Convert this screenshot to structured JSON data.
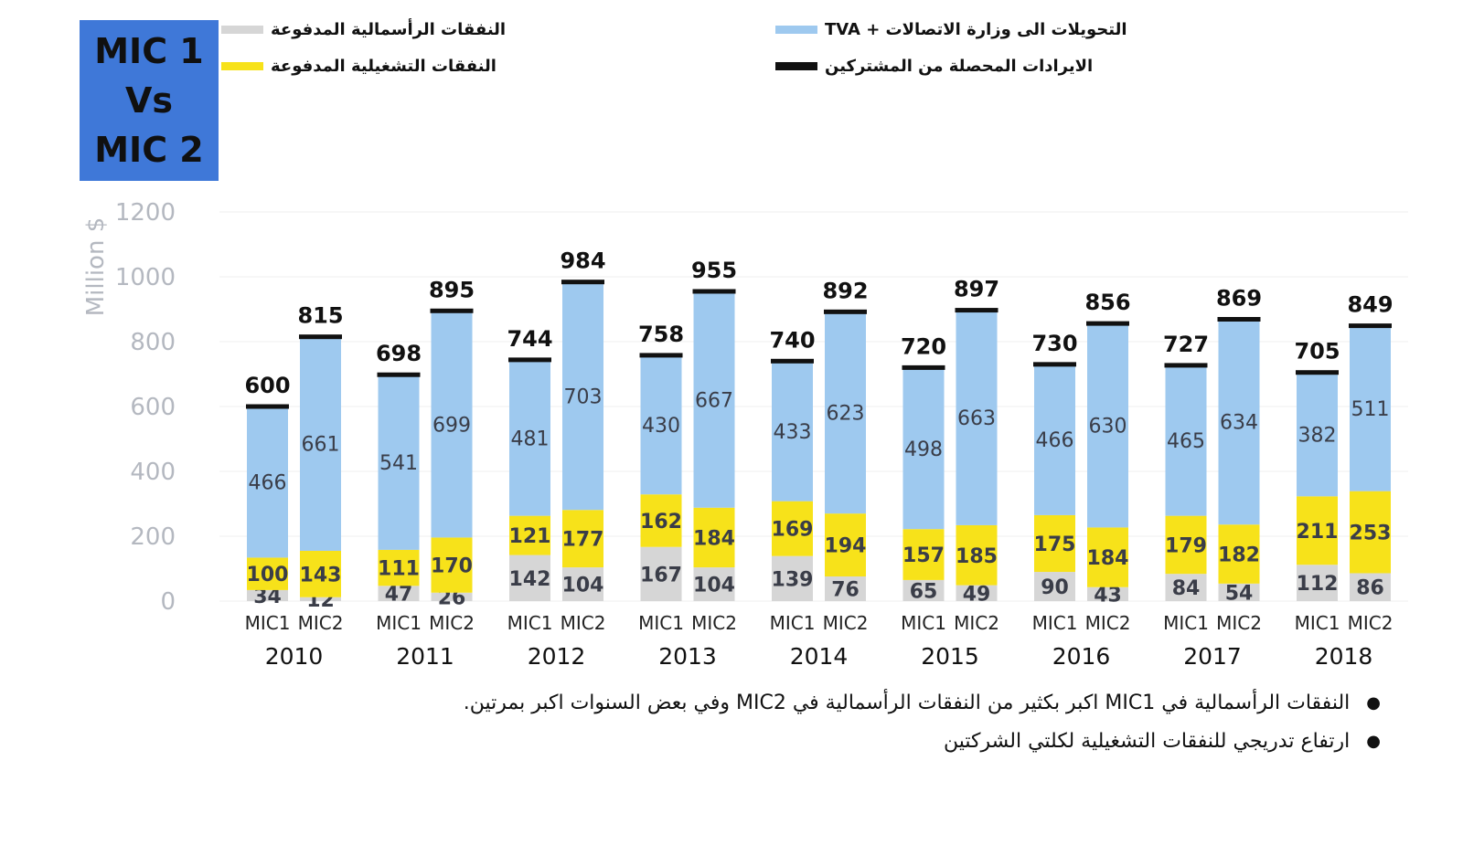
{
  "title_box": {
    "line1": "MIC 1",
    "line2": "Vs",
    "line3": "MIC 2"
  },
  "legend": [
    {
      "label": "النفقات الرأسمالية المدفوعة",
      "color": "#d6d6d6"
    },
    {
      "label": "النفقات التشغيلية المدفوعة",
      "color": "#f7e21a"
    },
    {
      "label": "التحويلات الى وزارة الاتصالات + TVA",
      "color": "#9ec9ef"
    },
    {
      "label": "الايرادات المحصلة من المشتركين",
      "color": "#111111"
    }
  ],
  "bullets": [
    "النفقات الرأسمالية في MIC1 اكبر بكثير من النفقات الرأسمالية في MIC2 وفي بعض السنوات اكبر بمرتين.",
    "ارتفاع تدريجي للنفقات التشغيلية لكلتي الشركتين"
  ],
  "chart_data": {
    "type": "bar",
    "stacked": true,
    "ylabel": "Million $",
    "ylim": [
      0,
      1200
    ],
    "yticks": [
      0,
      200,
      400,
      600,
      800,
      1000,
      1200
    ],
    "years": [
      "2010",
      "2011",
      "2012",
      "2013",
      "2014",
      "2015",
      "2016",
      "2017",
      "2018"
    ],
    "sub_labels": [
      "MIC1",
      "MIC2"
    ],
    "series": [
      {
        "name": "النفقات الرأسمالية المدفوعة",
        "color": "#d6d6d6",
        "MIC1": [
          34,
          47,
          142,
          167,
          139,
          65,
          90,
          84,
          112
        ],
        "MIC2": [
          12,
          26,
          104,
          104,
          76,
          49,
          43,
          54,
          86
        ]
      },
      {
        "name": "النفقات التشغيلية المدفوعة",
        "color": "#f7e21a",
        "MIC1": [
          100,
          111,
          121,
          162,
          169,
          157,
          175,
          179,
          211
        ],
        "MIC2": [
          143,
          170,
          177,
          184,
          194,
          185,
          184,
          182,
          253
        ]
      },
      {
        "name": "التحويلات الى وزارة الاتصالات + TVA",
        "color": "#9ec9ef",
        "MIC1": [
          466,
          541,
          481,
          430,
          433,
          498,
          466,
          465,
          382
        ],
        "MIC2": [
          661,
          699,
          703,
          667,
          623,
          663,
          630,
          634,
          511
        ]
      }
    ],
    "totals": {
      "name": "الايرادات المحصلة من المشتركين",
      "MIC1": [
        600,
        698,
        744,
        758,
        740,
        720,
        730,
        727,
        705
      ],
      "MIC2": [
        815,
        895,
        984,
        955,
        892,
        897,
        856,
        869,
        849
      ]
    }
  }
}
